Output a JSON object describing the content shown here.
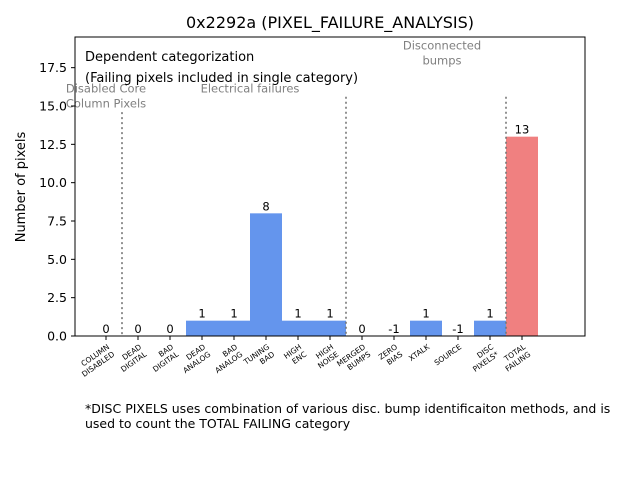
{
  "chart_data": {
    "type": "bar",
    "title": "0x2292a (PIXEL_FAILURE_ANALYSIS)",
    "xlabel": "",
    "ylabel": "Number of pixels",
    "ylim": [
      0,
      19.5
    ],
    "yticks": [
      0.0,
      2.5,
      5.0,
      7.5,
      10.0,
      12.5,
      15.0,
      17.5
    ],
    "ytick_labels": [
      "0.0",
      "2.5",
      "5.0",
      "7.5",
      "10.0",
      "12.5",
      "15.0",
      "17.5"
    ],
    "grid": false,
    "categories": [
      "COLUMN\nDISABLED",
      "DEAD\nDIGITAL",
      "BAD\nDIGITAL",
      "DEAD\nANALOG",
      "BAD\nANALOG",
      "TUNING\nBAD",
      "HIGH\nENC",
      "HIGH\nNOISE",
      "MERGED\nBUMPS",
      "ZERO\nBIAS",
      "XTALK",
      "SOURCE",
      "DISC\nPIXELS*",
      "TOTAL\nFAILING"
    ],
    "values": [
      0,
      0,
      0,
      1,
      1,
      8,
      1,
      1,
      0,
      -1,
      1,
      -1,
      1,
      13
    ],
    "value_labels": [
      "0",
      "0",
      "0",
      "1",
      "1",
      "8",
      "1",
      "1",
      "0",
      "-1",
      "1",
      "-1",
      "1",
      "13"
    ],
    "bar_colors": [
      "#6495ed",
      "#6495ed",
      "#6495ed",
      "#6495ed",
      "#6495ed",
      "#6495ed",
      "#6495ed",
      "#6495ed",
      "#6495ed",
      "#6495ed",
      "#6495ed",
      "#6495ed",
      "#6495ed",
      "#f08080"
    ],
    "separators": [
      {
        "after_index": 0,
        "top_value": 14.6
      },
      {
        "after_index": 7,
        "top_value": 15.6
      },
      {
        "after_index": 12,
        "top_value": 15.6
      }
    ],
    "group_labels": [
      {
        "text": "Disabled Core\nColumn Pixels",
        "at_index": 0,
        "value": 15.7
      },
      {
        "text": "Electrical failures",
        "at_index": 4.5,
        "value": 15.7
      },
      {
        "text": "Disconnected\nbumps",
        "at_index": 10.5,
        "value": 18.5
      }
    ],
    "annotations": [
      "Dependent categorization",
      "(Failing pixels included in single category)"
    ]
  },
  "footnote": "*DISC PIXELS uses combination of various disc. bump identificaiton methods, and is used to count the TOTAL FAILING category"
}
